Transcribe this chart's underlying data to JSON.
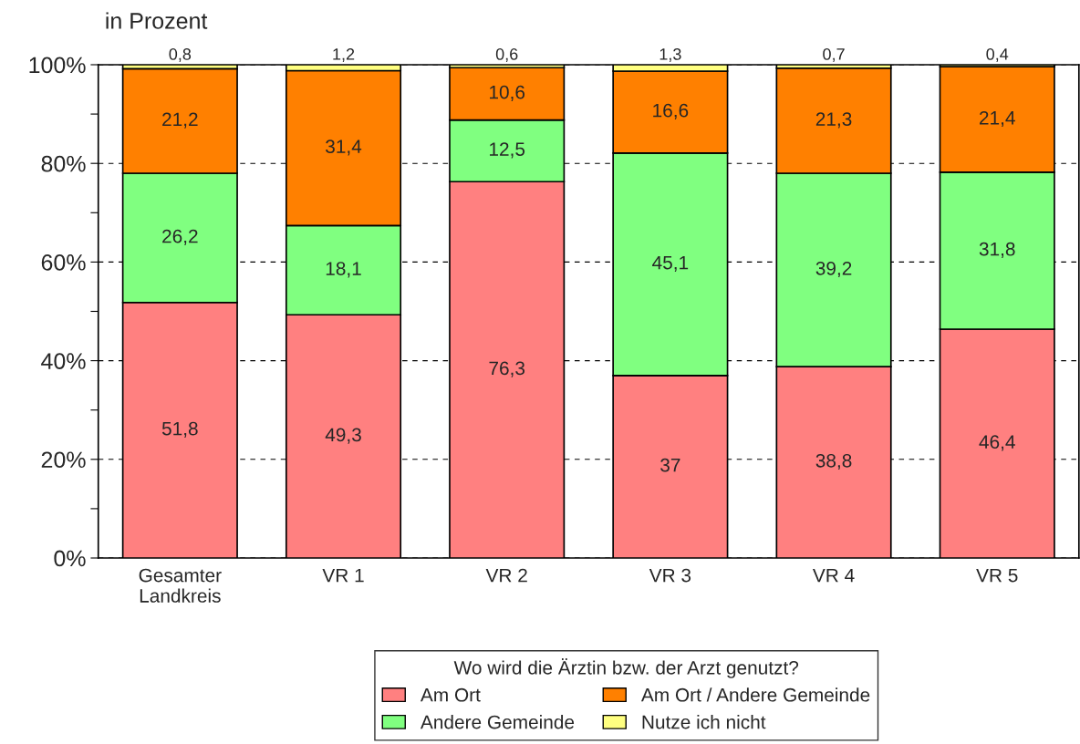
{
  "chart_data": {
    "type": "bar",
    "stacked": true,
    "ylabel": "in Prozent",
    "legend_title": "Wo wird die Ärztin bzw. der Arzt genutzt?",
    "categories": [
      "Gesamter\nLandkreis",
      "VR 1",
      "VR 2",
      "VR 3",
      "VR 4",
      "VR 5"
    ],
    "series": [
      {
        "name": "Am Ort",
        "color": "#ff8080",
        "values": [
          51.8,
          49.3,
          76.3,
          37,
          38.8,
          46.4
        ],
        "value_labels": [
          "51,8",
          "49,3",
          "76,3",
          "37",
          "38,8",
          "46,4"
        ]
      },
      {
        "name": "Andere Gemeinde",
        "color": "#80ff80",
        "values": [
          26.2,
          18.1,
          12.5,
          45.1,
          39.2,
          31.8
        ],
        "value_labels": [
          "26,2",
          "18,1",
          "12,5",
          "45,1",
          "39,2",
          "31,8"
        ]
      },
      {
        "name": "Am Ort / Andere Gemeinde",
        "color": "#ff8000",
        "values": [
          21.2,
          31.4,
          10.6,
          16.6,
          21.3,
          21.4
        ],
        "value_labels": [
          "21,2",
          "31,4",
          "10,6",
          "16,6",
          "21,3",
          "21,4"
        ]
      },
      {
        "name": "Nutze ich nicht",
        "color": "#ffff80",
        "values": [
          0.8,
          1.2,
          0.6,
          1.3,
          0.7,
          0.4
        ],
        "value_labels": [
          "0,8",
          "1,2",
          "0,6",
          "1,3",
          "0,7",
          "0,4"
        ]
      }
    ],
    "ylim": [
      0,
      100
    ],
    "yticks": [
      {
        "value": 0,
        "label": "0%"
      },
      {
        "value": 10,
        "label": null
      },
      {
        "value": 20,
        "label": "20%"
      },
      {
        "value": 30,
        "label": null
      },
      {
        "value": 40,
        "label": "40%"
      },
      {
        "value": 50,
        "label": null
      },
      {
        "value": 60,
        "label": "60%"
      },
      {
        "value": 70,
        "label": null
      },
      {
        "value": 80,
        "label": "80%"
      },
      {
        "value": 90,
        "label": null
      },
      {
        "value": 100,
        "label": "100%"
      }
    ],
    "grid": "y",
    "legend": "bottom"
  }
}
